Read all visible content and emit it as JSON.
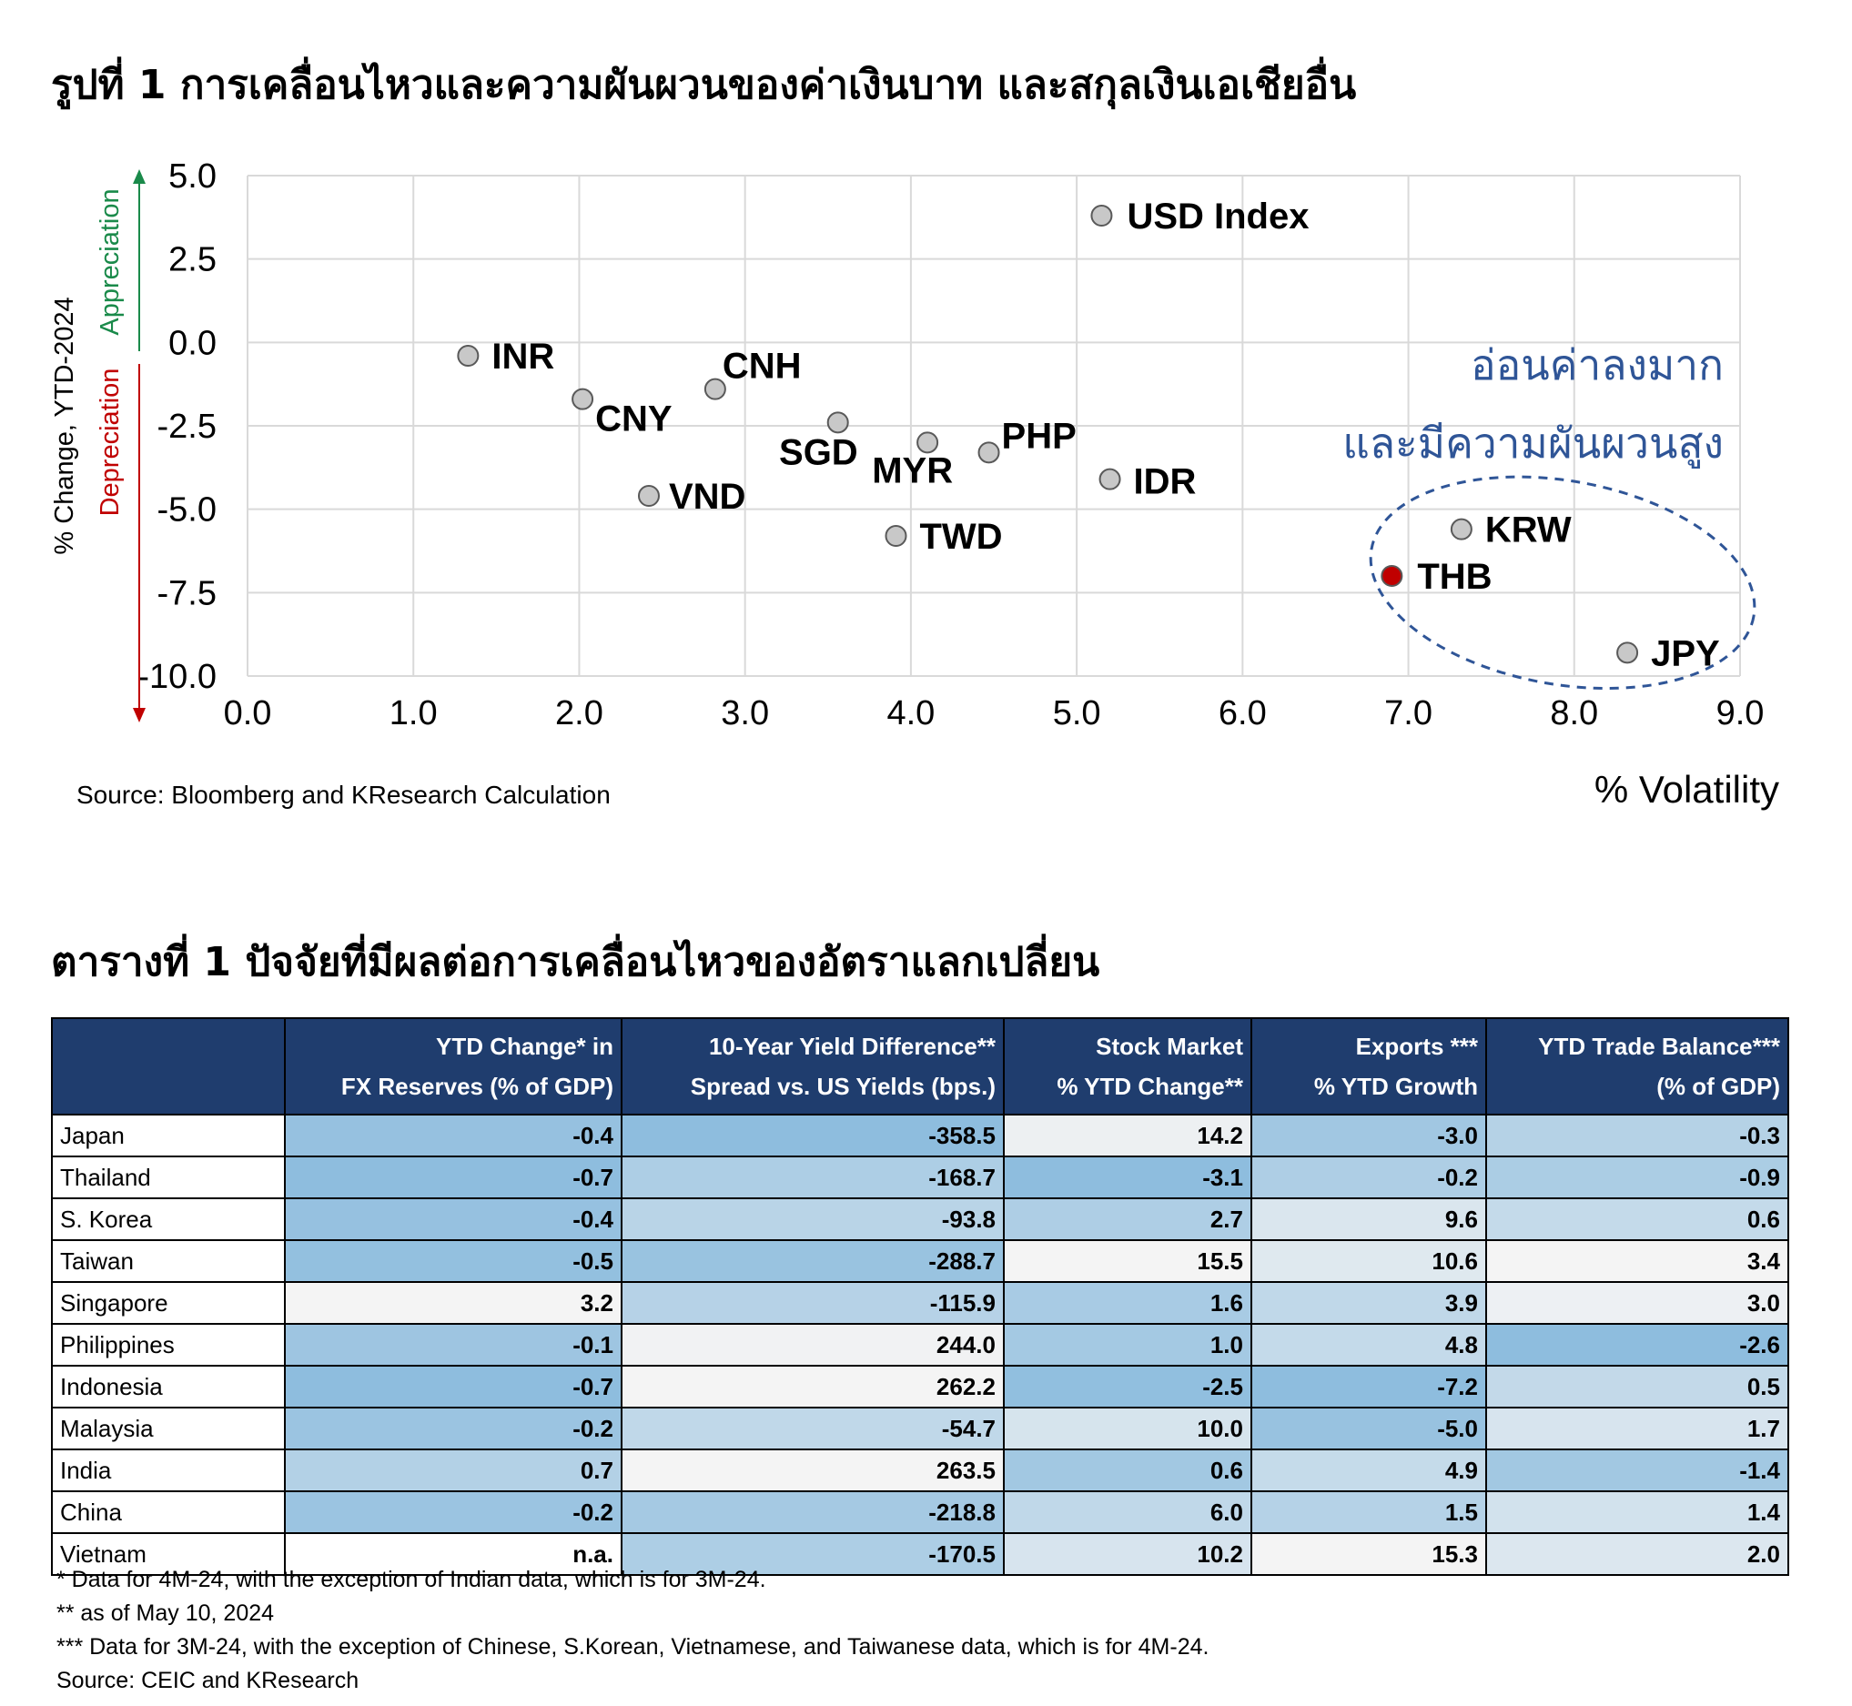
{
  "chart_title": "รูปที่ 1 การเคลื่อนไหวและความผันผวนของค่าเงินบาท และสกุลเงินเอเชียอื่น",
  "chart_data": {
    "type": "scatter",
    "xlabel": "% Volatility",
    "ylabel": "% Change, YTD-2024",
    "ylabel_up": "Appreciation",
    "ylabel_down": "Depreciation",
    "xlim": [
      0,
      9
    ],
    "ylim": [
      -10,
      5
    ],
    "x_ticks": [
      "0.0",
      "1.0",
      "2.0",
      "3.0",
      "4.0",
      "5.0",
      "6.0",
      "7.0",
      "8.0",
      "9.0"
    ],
    "y_ticks": [
      "5.0",
      "2.5",
      "0.0",
      "-2.5",
      "-5.0",
      "-7.5",
      "-10.0"
    ],
    "grid": true,
    "points": [
      {
        "label": "USD Index",
        "x": 5.15,
        "y": 3.8
      },
      {
        "label": "INR",
        "x": 1.33,
        "y": -0.4
      },
      {
        "label": "CNY",
        "x": 2.02,
        "y": -1.7
      },
      {
        "label": "CNH",
        "x": 2.82,
        "y": -1.4
      },
      {
        "label": "SGD",
        "x": 3.56,
        "y": -2.4
      },
      {
        "label": "MYR",
        "x": 4.1,
        "y": -3.0
      },
      {
        "label": "PHP",
        "x": 4.47,
        "y": -3.3
      },
      {
        "label": "IDR",
        "x": 5.2,
        "y": -4.1
      },
      {
        "label": "VND",
        "x": 2.42,
        "y": -4.6
      },
      {
        "label": "TWD",
        "x": 3.91,
        "y": -5.8
      },
      {
        "label": "KRW",
        "x": 7.32,
        "y": -5.6
      },
      {
        "label": "THB",
        "x": 6.9,
        "y": -7.0
      },
      {
        "label": "JPY",
        "x": 8.32,
        "y": -9.3
      }
    ],
    "annotation_lines": [
      "อ่อนค่าลงมาก",
      "และมีความผันผวนสูง"
    ],
    "colors": {
      "point": "#c8c8c8",
      "highlight": "#c00000",
      "annotation": "#2f5597",
      "up": "#1a8a4a",
      "down": "#c00000"
    },
    "highlight": "THB"
  },
  "chart_source": "Source: Bloomberg and KResearch Calculation",
  "table_title": "ตารางที่ 1 ปัจจัยที่มีผลต่อการเคลื่อนไหวของอัตราแลกเปลี่ยน",
  "table": {
    "headers": [
      [
        "",
        ""
      ],
      [
        "YTD Change* in",
        "FX Reserves (% of GDP)"
      ],
      [
        "10-Year Yield Difference**",
        "Spread vs. US Yields (bps.)"
      ],
      [
        "Stock Market",
        "% YTD Change**"
      ],
      [
        "Exports ***",
        "% YTD Growth"
      ],
      [
        "YTD Trade Balance***",
        "(% of GDP)"
      ]
    ],
    "rows": [
      [
        "Japan",
        "-0.4",
        "-358.5",
        "14.2",
        "-3.0",
        "-0.3"
      ],
      [
        "Thailand",
        "-0.7",
        "-168.7",
        "-3.1",
        "-0.2",
        "-0.9"
      ],
      [
        "S. Korea",
        "-0.4",
        "-93.8",
        "2.7",
        "9.6",
        "0.6"
      ],
      [
        "Taiwan",
        "-0.5",
        "-288.7",
        "15.5",
        "10.6",
        "3.4"
      ],
      [
        "Singapore",
        "3.2",
        "-115.9",
        "1.6",
        "3.9",
        "3.0"
      ],
      [
        "Philippines",
        "-0.1",
        "244.0",
        "1.0",
        "4.8",
        "-2.6"
      ],
      [
        "Indonesia",
        "-0.7",
        "262.2",
        "-2.5",
        "-7.2",
        "0.5"
      ],
      [
        "Malaysia",
        "-0.2",
        "-54.7",
        "10.0",
        "-5.0",
        "1.7"
      ],
      [
        "India",
        "0.7",
        "263.5",
        "0.6",
        "4.9",
        "-1.4"
      ],
      [
        "China",
        "-0.2",
        "-218.8",
        "6.0",
        "1.5",
        "1.4"
      ],
      [
        "Vietnam",
        "n.a.",
        "-170.5",
        "10.2",
        "15.3",
        "2.0"
      ]
    ],
    "header_color": "#1f3d6e"
  },
  "notes": [
    "* Data for 4M-24, with the exception of Indian data, which is for  3M-24.",
    "** as of May 10, 2024",
    "*** Data for 3M-24, with the exception of Chinese, S.Korean, Vietnamese, and Taiwanese data, which is for  4M-24.",
    "Source: CEIC and KResearch"
  ]
}
